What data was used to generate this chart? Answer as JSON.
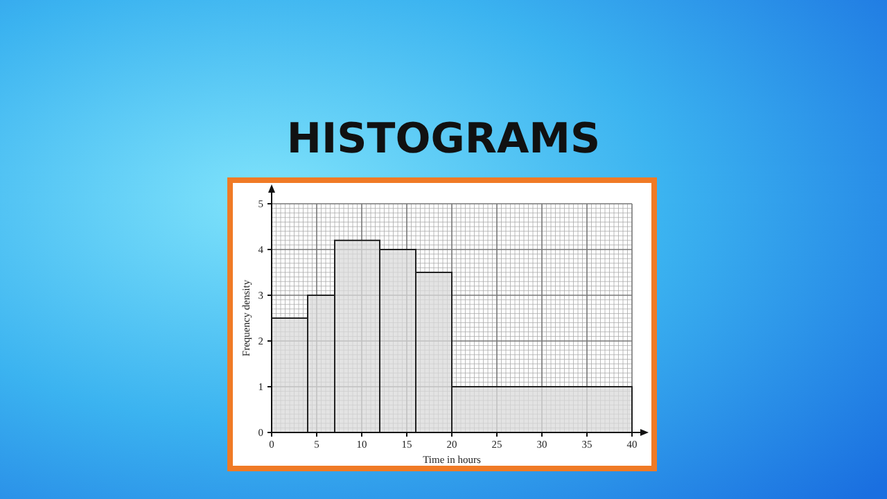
{
  "chart_data": {
    "type": "histogram",
    "title": "HISTOGRAMS",
    "xlabel": "Time in hours",
    "ylabel": "Frequency density",
    "bins": [
      0,
      4,
      7,
      12,
      16,
      20,
      40
    ],
    "values": [
      2.5,
      3,
      4.2,
      4,
      3.5,
      1
    ],
    "color": "#d9d9d9",
    "xlim": [
      0,
      40
    ],
    "xticks": [
      0,
      5,
      10,
      15,
      20,
      25,
      30,
      35,
      40
    ],
    "ylim": [
      0,
      5
    ],
    "yticks": [
      0,
      1,
      2,
      3,
      4,
      5
    ],
    "grid": true
  }
}
